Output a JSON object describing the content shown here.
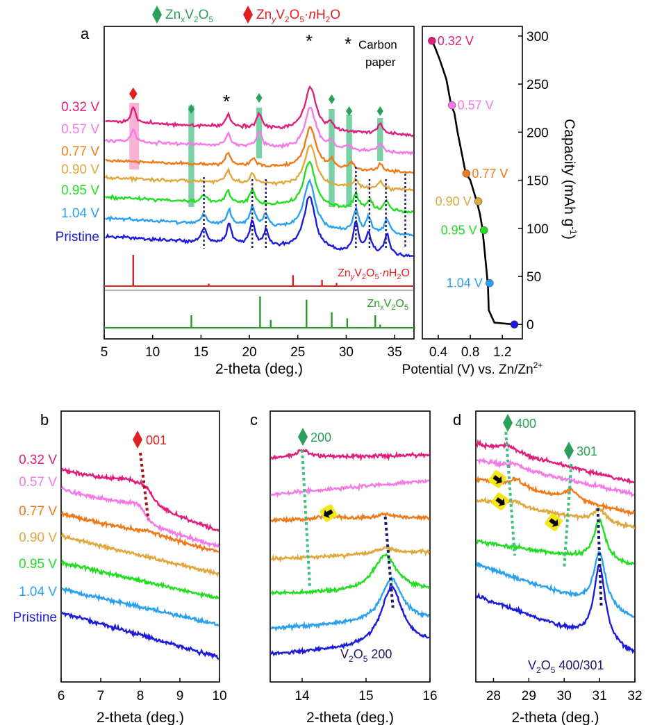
{
  "colors": {
    "pristine": "#1b1bd9",
    "v104": "#2aa0f0",
    "v095": "#22dd22",
    "v090": "#dfa83c",
    "v077": "#f07a1a",
    "v057": "#f57ae6",
    "v032": "#e01e7c",
    "ref_hydrate": "#e02020",
    "ref_zn": "#2a9a2a",
    "znx_marker": "#2aa05a",
    "zny_marker": "#e02020",
    "dark_text": "#1a1a6b",
    "highlight_green": "#3fbf7f",
    "highlight_pink": "#f7a0c8"
  },
  "legend": {
    "znx_prefix": "Zn",
    "znx_sub": "x",
    "znx_mid": "V",
    "znx_sub2": "2",
    "znx_o": "O",
    "znx_sub3": "5",
    "zny_prefix": "Zn",
    "zny_sub": "y",
    "zny_mid": "V",
    "zny_sub2": "2",
    "zny_o": "O",
    "zny_sub3": "5",
    "zny_rest": "·",
    "zny_n": "n",
    "zny_h": "H",
    "zny_sub4": "2",
    "zny_end": "O"
  },
  "panel_labels": {
    "a": "a",
    "b": "b",
    "c": "c",
    "d": "d"
  },
  "curve_labels": [
    "0.32 V",
    "0.57 V",
    "0.77 V",
    "0.90 V",
    "0.95 V",
    "1.04 V",
    "Pristine"
  ],
  "annotations": {
    "asterisk": "*",
    "carbon_line1": "Carbon",
    "carbon_line2": "paper",
    "ref_hydrate_label": "ZnyV2O5·nH2O",
    "ref_zn_label": "ZnxV2O5",
    "peak_001": "001",
    "peak_200": "200",
    "peak_400": "400",
    "peak_301": "301",
    "v2o5_200": "V2O5  200",
    "v2o5_400": "V2O5  400/301"
  },
  "chart_data": [
    {
      "type": "line",
      "panel": "a",
      "title": "",
      "xlabel": "2-theta (deg.)",
      "ylabel": "",
      "xlim": [
        5,
        37
      ],
      "xticks": [
        5,
        10,
        15,
        20,
        25,
        30,
        35
      ],
      "series": [
        {
          "name": "0.32 V",
          "peaks": [
            [
              8.0,
              0.6
            ],
            [
              17.8,
              0.5
            ],
            [
              21.0,
              0.6
            ],
            [
              26.3,
              1.8
            ],
            [
              28.4,
              0.3
            ],
            [
              33.5,
              0.4
            ]
          ]
        },
        {
          "name": "0.57 V",
          "peaks": [
            [
              8.0,
              0.5
            ],
            [
              17.8,
              0.5
            ],
            [
              21.0,
              0.6
            ],
            [
              26.3,
              1.7
            ],
            [
              28.4,
              0.3
            ],
            [
              30.2,
              0.2
            ],
            [
              33.5,
              0.35
            ]
          ]
        },
        {
          "name": "0.77 V",
          "peaks": [
            [
              17.8,
              0.5
            ],
            [
              20.4,
              0.3
            ],
            [
              26.3,
              1.7
            ],
            [
              28.5,
              0.3
            ],
            [
              30.5,
              0.3
            ],
            [
              33.5,
              0.3
            ]
          ]
        },
        {
          "name": "0.90 V",
          "peaks": [
            [
              17.8,
              0.5
            ],
            [
              20.3,
              0.4
            ],
            [
              26.3,
              1.7
            ],
            [
              31.0,
              0.3
            ],
            [
              33.5,
              0.3
            ]
          ]
        },
        {
          "name": "0.95 V",
          "peaks": [
            [
              15.3,
              0.3
            ],
            [
              17.8,
              0.5
            ],
            [
              20.3,
              0.6
            ],
            [
              26.2,
              1.9
            ],
            [
              31.0,
              0.6
            ],
            [
              32.4,
              0.4
            ],
            [
              34.2,
              0.4
            ]
          ]
        },
        {
          "name": "1.04 V",
          "peaks": [
            [
              15.3,
              0.4
            ],
            [
              17.9,
              0.6
            ],
            [
              20.3,
              0.8
            ],
            [
              21.7,
              0.5
            ],
            [
              26.2,
              2.0
            ],
            [
              31.0,
              0.9
            ],
            [
              32.3,
              0.6
            ],
            [
              34.2,
              0.6
            ]
          ]
        },
        {
          "name": "Pristine",
          "peaks": [
            [
              15.3,
              0.6
            ],
            [
              17.9,
              0.8
            ],
            [
              20.3,
              1.0
            ],
            [
              21.7,
              0.6
            ],
            [
              26.2,
              2.2
            ],
            [
              31.0,
              1.2
            ],
            [
              32.3,
              0.8
            ],
            [
              34.2,
              0.8
            ]
          ]
        }
      ],
      "reference_patterns": [
        {
          "name": "ZnyV2O5·nH2O",
          "sticks": [
            [
              8.0,
              1.0
            ],
            [
              15.8,
              0.08
            ],
            [
              24.5,
              0.35
            ],
            [
              27.5,
              0.2
            ],
            [
              29.0,
              0.1
            ]
          ]
        },
        {
          "name": "ZnxV2O5",
          "sticks": [
            [
              14.0,
              0.4
            ],
            [
              21.1,
              1.0
            ],
            [
              22.2,
              0.25
            ],
            [
              25.9,
              0.9
            ],
            [
              28.5,
              0.5
            ],
            [
              30.1,
              0.3
            ],
            [
              33.0,
              0.4
            ],
            [
              33.5,
              0.1
            ]
          ]
        }
      ],
      "highlight_bands": [
        [
          7.6,
          8.6
        ],
        [
          13.7,
          14.3
        ],
        [
          20.7,
          21.3
        ],
        [
          28.2,
          28.8
        ],
        [
          30.0,
          30.6
        ],
        [
          33.2,
          33.8
        ]
      ],
      "dashed_guides": [
        15.3,
        20.3,
        21.7,
        31.0,
        32.4,
        34.1,
        36.1
      ]
    },
    {
      "type": "line",
      "panel": "a-right",
      "title": "",
      "xlabel": "Potential (V) vs. Zn/Zn2+",
      "ylabel": "Capacity (mAh g-1)",
      "xlim": [
        0.2,
        1.45
      ],
      "ylim": [
        -15,
        310
      ],
      "xticks": [
        0.4,
        0.8,
        1.2
      ],
      "xtick_labels": [
        "0.4",
        "0.8",
        "1.2"
      ],
      "yticks": [
        0,
        50,
        100,
        150,
        200,
        250,
        300
      ],
      "x": [
        1.35,
        1.1,
        1.03,
        1.02,
        0.98,
        0.95,
        0.92,
        0.88,
        0.8,
        0.74,
        0.7,
        0.64,
        0.6,
        0.56,
        0.5,
        0.42,
        0.36,
        0.32
      ],
      "y": [
        0,
        2,
        15,
        40,
        75,
        100,
        115,
        128,
        150,
        158,
        175,
        200,
        220,
        228,
        255,
        275,
        288,
        295
      ],
      "markers": [
        {
          "label": "0.32 V",
          "x": 0.32,
          "y": 295
        },
        {
          "label": "0.57 V",
          "x": 0.57,
          "y": 228
        },
        {
          "label": "0.77 V",
          "x": 0.75,
          "y": 157
        },
        {
          "label": "0.90 V",
          "x": 0.9,
          "y": 128
        },
        {
          "label": "0.95 V",
          "x": 0.97,
          "y": 98
        },
        {
          "label": "1.04 V",
          "x": 1.04,
          "y": 43
        },
        {
          "label": "Pristine",
          "x": 1.35,
          "y": 0
        }
      ]
    },
    {
      "type": "line",
      "panel": "b",
      "xlabel": "2-theta (deg.)",
      "xlim": [
        6,
        10
      ],
      "xticks": [
        6,
        7,
        8,
        9,
        10
      ],
      "peak_guide": [
        [
          8.0,
          0
        ],
        [
          8.2,
          2
        ]
      ]
    },
    {
      "type": "line",
      "panel": "c",
      "xlabel": "2-theta (deg.)",
      "xlim": [
        13.5,
        16
      ],
      "xticks": [
        14,
        15,
        16
      ],
      "peak_guides": [
        [
          [
            14.0,
            0
          ],
          [
            14.15,
            5
          ]
        ],
        [
          [
            15.3,
            2
          ],
          [
            15.4,
            6
          ]
        ]
      ]
    },
    {
      "type": "line",
      "panel": "d",
      "xlabel": "2-theta (deg.)",
      "xlim": [
        27.5,
        32
      ],
      "xticks": [
        28,
        29,
        30,
        31,
        32
      ],
      "peak_guides": [
        [
          [
            28.3,
            0
          ],
          [
            28.6,
            4
          ]
        ],
        [
          [
            30.2,
            1
          ],
          [
            30.0,
            4
          ]
        ],
        [
          [
            30.9,
            3
          ],
          [
            31.0,
            6
          ]
        ]
      ]
    }
  ]
}
